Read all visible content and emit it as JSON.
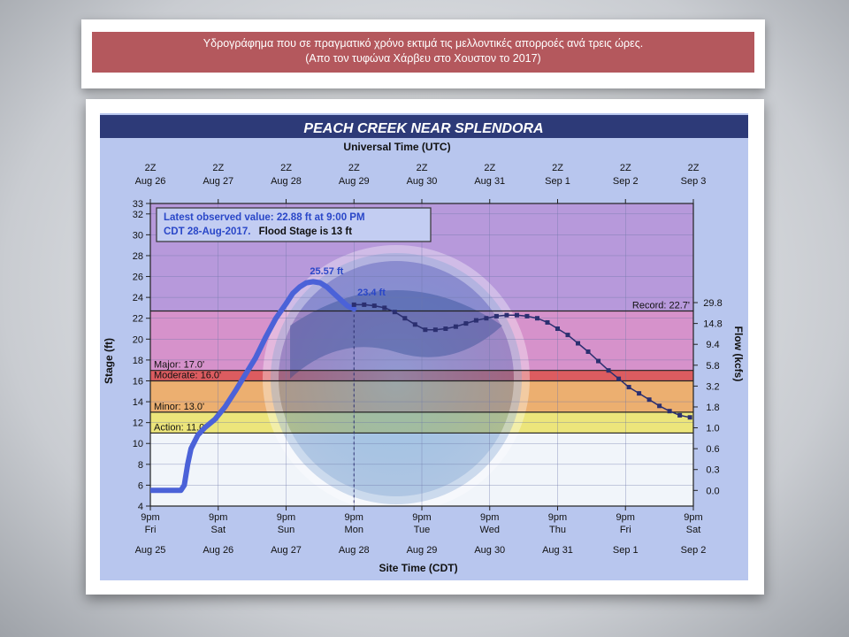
{
  "caption": {
    "line1": "Υδρογράφημα που σε πραγματικό χρόνο εκτιμά τις μελλοντικές απορροές ανά τρεις ώρες.",
    "line2": "(Απο τον τυφώνα Χάρβευ στο Χουστον το 2017)"
  },
  "chart_data": {
    "type": "line",
    "title": "PEACH CREEK NEAR SPLENDORA",
    "top_axis_title": "Universal Time (UTC)",
    "bottom_axis_title": "Site Time (CDT)",
    "ylabel": "Stage (ft)",
    "y2label": "Flow (kcfs)",
    "ylim": [
      4,
      33
    ],
    "xlim": [
      0,
      8
    ],
    "y_ticks": [
      "4",
      "6",
      "8",
      "10",
      "12",
      "14",
      "16",
      "18",
      "20",
      "22",
      "24",
      "26",
      "28",
      "30",
      "32",
      "33"
    ],
    "flow_ticks": [
      {
        "stage": 5.5,
        "label": "0.0"
      },
      {
        "stage": 7.5,
        "label": "0.3"
      },
      {
        "stage": 9.5,
        "label": "0.6"
      },
      {
        "stage": 11.5,
        "label": "1.0"
      },
      {
        "stage": 13.5,
        "label": "1.8"
      },
      {
        "stage": 15.5,
        "label": "3.2"
      },
      {
        "stage": 17.5,
        "label": "5.8"
      },
      {
        "stage": 19.5,
        "label": "9.4"
      },
      {
        "stage": 21.5,
        "label": "14.8"
      },
      {
        "stage": 23.5,
        "label": "29.8"
      }
    ],
    "top_ticks": [
      {
        "t": "2Z",
        "d": "Aug 26"
      },
      {
        "t": "2Z",
        "d": "Aug 27"
      },
      {
        "t": "2Z",
        "d": "Aug 28"
      },
      {
        "t": "2Z",
        "d": "Aug 29"
      },
      {
        "t": "2Z",
        "d": "Aug 30"
      },
      {
        "t": "2Z",
        "d": "Aug 31"
      },
      {
        "t": "2Z",
        "d": "Sep  1"
      },
      {
        "t": "2Z",
        "d": "Sep  2"
      },
      {
        "t": "2Z",
        "d": "Sep  3"
      }
    ],
    "bottom_ticks": [
      {
        "t": "9pm",
        "w": "Fri",
        "d": "Aug 25"
      },
      {
        "t": "9pm",
        "w": "Sat",
        "d": "Aug 26"
      },
      {
        "t": "9pm",
        "w": "Sun",
        "d": "Aug 27"
      },
      {
        "t": "9pm",
        "w": "Mon",
        "d": "Aug 28"
      },
      {
        "t": "9pm",
        "w": "Tue",
        "d": "Aug 29"
      },
      {
        "t": "9pm",
        "w": "Wed",
        "d": "Aug 30"
      },
      {
        "t": "9pm",
        "w": "Thu",
        "d": "Aug 31"
      },
      {
        "t": "9pm",
        "w": "Fri",
        "d": "Sep 1"
      },
      {
        "t": "9pm",
        "w": "Sat",
        "d": "Sep 2"
      }
    ],
    "stages": [
      {
        "name": "Record: 22.7'",
        "value": 22.7,
        "label_side": "right"
      },
      {
        "name": "Major: 17.0'",
        "value": 17.0,
        "label_side": "left"
      },
      {
        "name": "Moderate: 16.0'",
        "value": 16.0,
        "label_side": "left"
      },
      {
        "name": "Minor: 13.0'",
        "value": 13.0,
        "label_side": "left"
      },
      {
        "name": "Action: 11.0'",
        "value": 11.0,
        "label_side": "left"
      }
    ],
    "legend_box": {
      "line1": "Latest observed value: 22.88 ft at 9:00 PM",
      "line2a": "CDT 28-Aug-2017.",
      "line2b": "Flood Stage is 13 ft"
    },
    "annotations": [
      {
        "text": "25.57 ft",
        "x": 2.35,
        "y": 26.2
      },
      {
        "text": "23.4 ft",
        "x": 3.05,
        "y": 24.2
      }
    ],
    "observed": {
      "x": [
        0,
        0.45,
        0.5,
        0.55,
        0.6,
        0.7,
        0.8,
        0.95,
        1.1,
        1.25,
        1.4,
        1.55,
        1.7,
        1.85,
        2.0,
        2.1,
        2.2,
        2.3,
        2.4,
        2.5,
        2.6,
        2.7,
        2.8,
        2.9,
        3.0
      ],
      "y": [
        5.5,
        5.5,
        6.0,
        8.0,
        9.5,
        10.8,
        11.5,
        12.3,
        13.5,
        15.0,
        16.6,
        18.2,
        20.2,
        22.0,
        23.4,
        24.4,
        25.0,
        25.4,
        25.5,
        25.4,
        25.0,
        24.4,
        23.8,
        23.2,
        22.88
      ]
    },
    "forecast": {
      "x": [
        3.0,
        3.15,
        3.3,
        3.45,
        3.6,
        3.75,
        3.9,
        4.05,
        4.2,
        4.35,
        4.5,
        4.65,
        4.8,
        4.95,
        5.1,
        5.25,
        5.4,
        5.55,
        5.7,
        5.85,
        6.0,
        6.15,
        6.3,
        6.45,
        6.6,
        6.75,
        6.9,
        7.05,
        7.2,
        7.35,
        7.5,
        7.65,
        7.8,
        7.95
      ],
      "y": [
        23.3,
        23.3,
        23.2,
        23.0,
        22.6,
        22.0,
        21.4,
        20.9,
        20.9,
        21.0,
        21.2,
        21.5,
        21.8,
        22.0,
        22.2,
        22.3,
        22.3,
        22.2,
        22.0,
        21.6,
        21.0,
        20.4,
        19.6,
        18.8,
        17.9,
        17.0,
        16.2,
        15.4,
        14.8,
        14.2,
        13.6,
        13.1,
        12.7,
        12.5
      ]
    },
    "colors": {
      "observed": "#4b62d8",
      "forecast": "#2b2f70",
      "record_band": "#b794d8",
      "major_band": "#d98cc7",
      "moderate_band": "#e05050",
      "minor_band": "#f2ac62",
      "action_band": "#f2e86e",
      "normal_band": "#f7fafb",
      "title_bar": "#2d3a78"
    }
  }
}
